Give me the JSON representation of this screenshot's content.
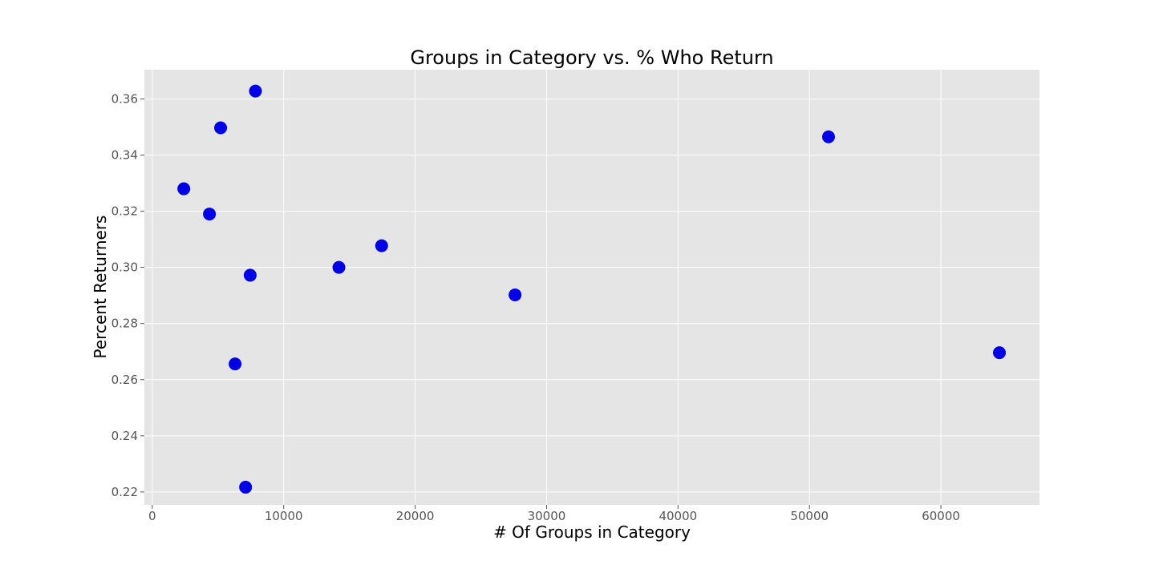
{
  "chart_data": {
    "type": "scatter",
    "title": "Groups in Category vs. % Who Return",
    "xlabel": "# Of Groups in Category",
    "ylabel": "Percent Returners",
    "xlim": [
      -600,
      67500
    ],
    "ylim": [
      0.2154,
      0.3704
    ],
    "xticks": [
      0,
      10000,
      20000,
      30000,
      40000,
      50000,
      60000
    ],
    "yticks": [
      0.22,
      0.24,
      0.26,
      0.28,
      0.3,
      0.32,
      0.34,
      0.36
    ],
    "xtick_labels": [
      "0",
      "10000",
      "20000",
      "30000",
      "40000",
      "50000",
      "60000"
    ],
    "ytick_labels": [
      "0.22",
      "0.24",
      "0.26",
      "0.28",
      "0.30",
      "0.32",
      "0.34",
      "0.36"
    ],
    "grid": true,
    "background_color": "#e5e5e5",
    "marker_color": "#0000e6",
    "points": [
      {
        "x": 2400,
        "y": 0.328
      },
      {
        "x": 4350,
        "y": 0.319
      },
      {
        "x": 5200,
        "y": 0.3497
      },
      {
        "x": 6300,
        "y": 0.2656
      },
      {
        "x": 7100,
        "y": 0.2217
      },
      {
        "x": 7450,
        "y": 0.2972
      },
      {
        "x": 7850,
        "y": 0.3628
      },
      {
        "x": 14200,
        "y": 0.3
      },
      {
        "x": 17450,
        "y": 0.3077
      },
      {
        "x": 27600,
        "y": 0.2902
      },
      {
        "x": 51450,
        "y": 0.3465
      },
      {
        "x": 64450,
        "y": 0.2696
      }
    ]
  }
}
